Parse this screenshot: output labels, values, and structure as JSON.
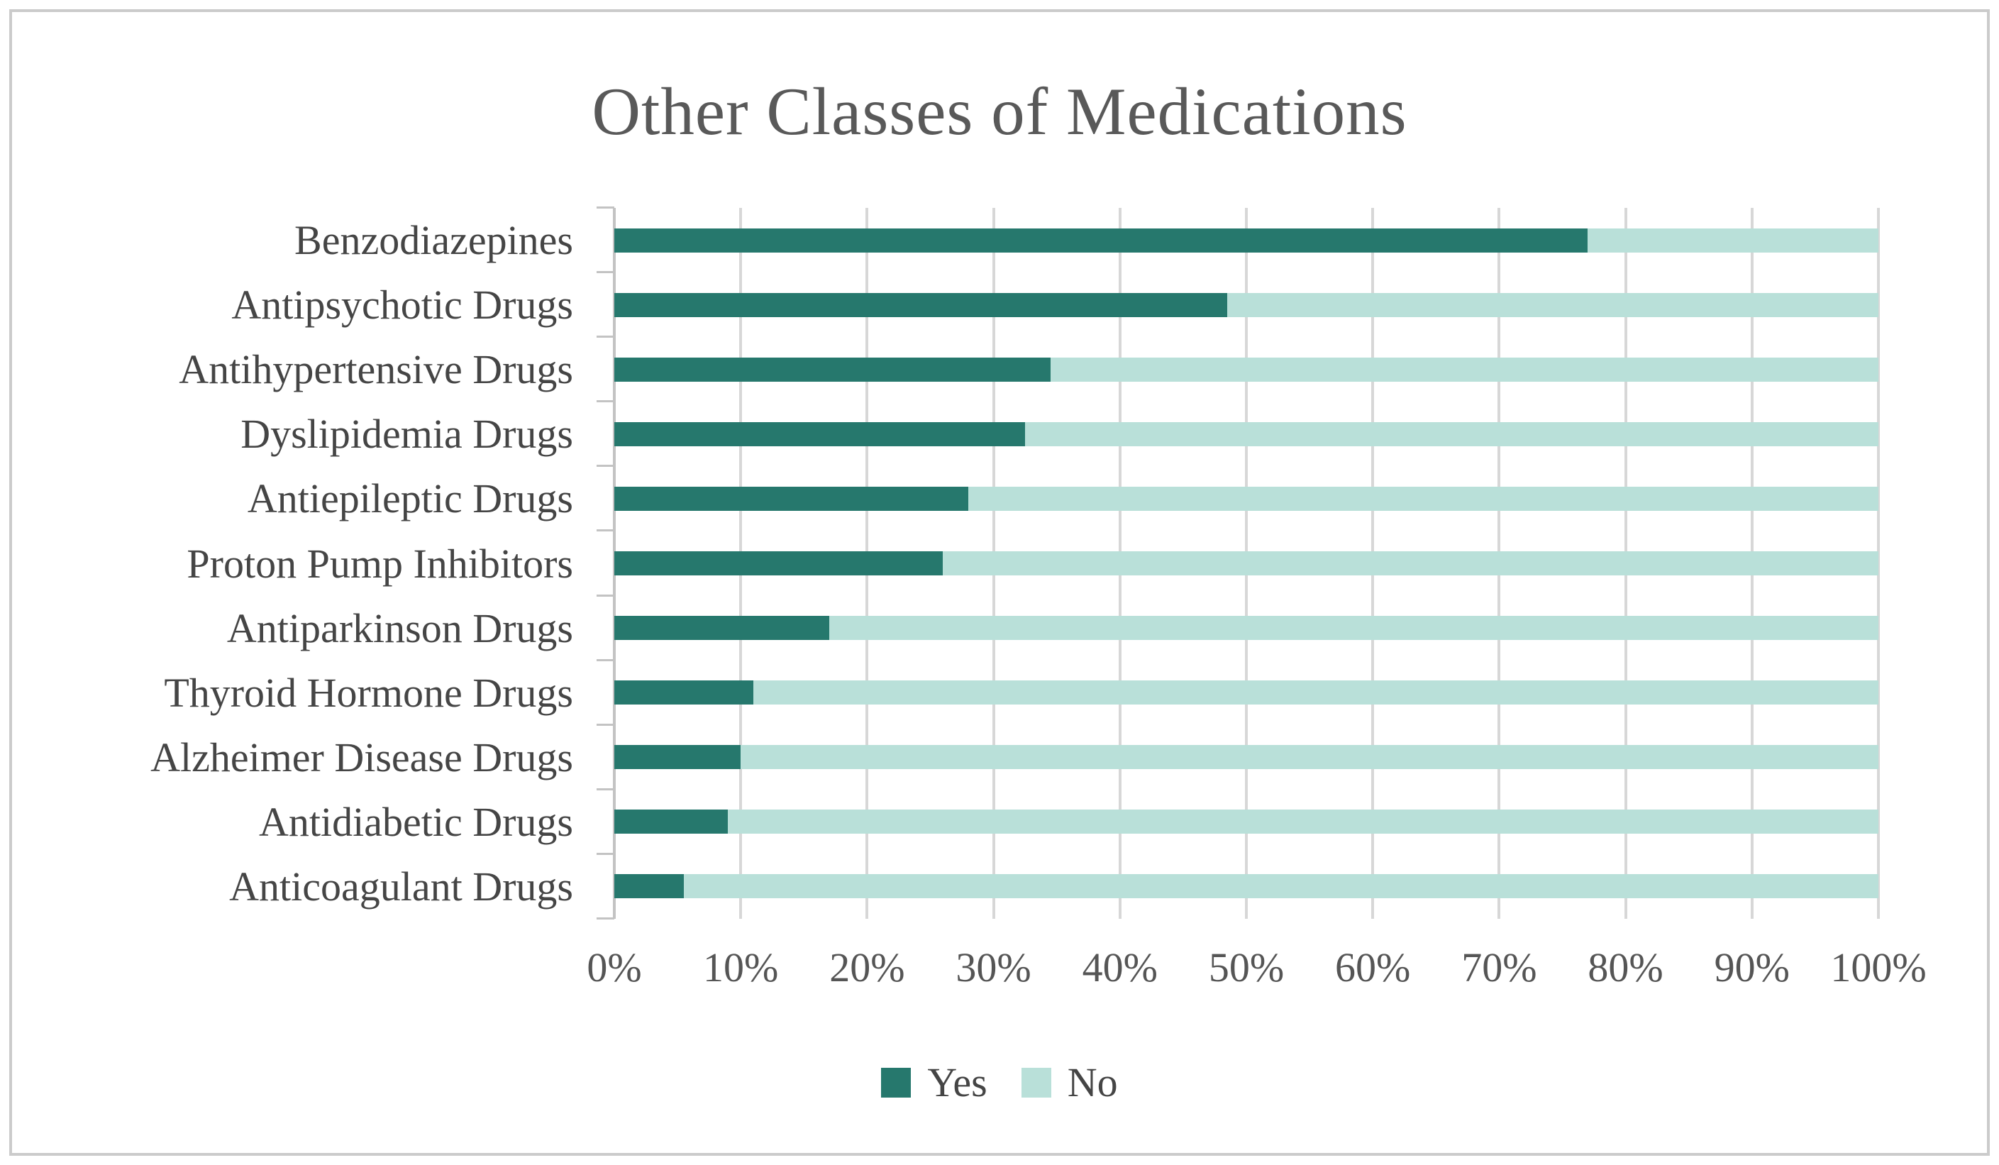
{
  "chart_data": {
    "type": "bar",
    "orientation": "horizontal",
    "stacked": true,
    "stacked_total": 100,
    "title": "Other Classes of Medications",
    "categories": [
      "Benzodiazepines",
      "Antipsychotic Drugs",
      "Antihypertensive Drugs",
      "Dyslipidemia Drugs",
      "Antiepileptic Drugs",
      "Proton Pump Inhibitors",
      "Antiparkinson Drugs",
      "Thyroid Hormone Drugs",
      "Alzheimer Disease Drugs",
      "Antidiabetic Drugs",
      "Anticoagulant Drugs"
    ],
    "series": [
      {
        "name": "Yes",
        "color": "#26786D",
        "values": [
          77,
          48.5,
          34.5,
          32.5,
          28,
          26,
          17,
          11,
          10,
          9,
          5.5
        ]
      },
      {
        "name": "No",
        "color": "#B9E0D9",
        "values": [
          23,
          51.5,
          65.5,
          67.5,
          72,
          74,
          83,
          89,
          90,
          91,
          94.5
        ]
      }
    ],
    "x_axis": {
      "min": 0,
      "max": 100,
      "tick_step": 10,
      "unit": "%",
      "tick_labels": [
        "0%",
        "10%",
        "20%",
        "30%",
        "40%",
        "50%",
        "60%",
        "70%",
        "80%",
        "90%",
        "100%"
      ]
    },
    "grid": "vertical",
    "legend": {
      "position": "bottom",
      "entries": [
        "Yes",
        "No"
      ]
    }
  }
}
